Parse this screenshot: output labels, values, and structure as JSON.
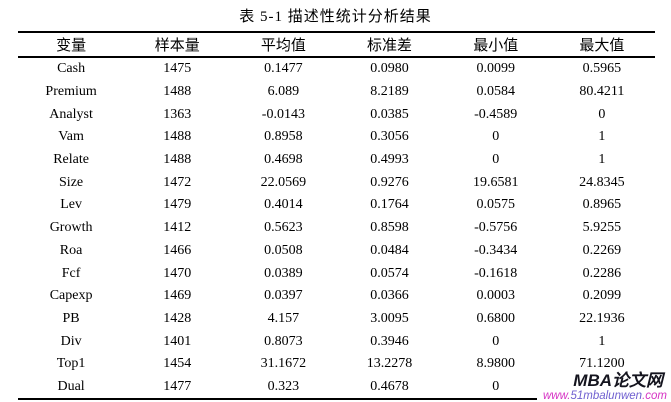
{
  "title": "表 5-1 描述性统计分析结果",
  "table": {
    "headers": [
      "变量",
      "样本量",
      "平均值",
      "标准差",
      "最小值",
      "最大值"
    ],
    "rows": [
      [
        "Cash",
        "1475",
        "0.1477",
        "0.0980",
        "0.0099",
        "0.5965"
      ],
      [
        "Premium",
        "1488",
        "6.089",
        "8.2189",
        "0.0584",
        "80.4211"
      ],
      [
        "Analyst",
        "1363",
        "-0.0143",
        "0.0385",
        "-0.4589",
        "0"
      ],
      [
        "Vam",
        "1488",
        "0.8958",
        "0.3056",
        "0",
        "1"
      ],
      [
        "Relate",
        "1488",
        "0.4698",
        "0.4993",
        "0",
        "1"
      ],
      [
        "Size",
        "1472",
        "22.0569",
        "0.9276",
        "19.6581",
        "24.8345"
      ],
      [
        "Lev",
        "1479",
        "0.4014",
        "0.1764",
        "0.0575",
        "0.8965"
      ],
      [
        "Growth",
        "1412",
        "0.5623",
        "0.8598",
        "-0.5756",
        "5.9255"
      ],
      [
        "Roa",
        "1466",
        "0.0508",
        "0.0484",
        "-0.3434",
        "0.2269"
      ],
      [
        "Fcf",
        "1470",
        "0.0389",
        "0.0574",
        "-0.1618",
        "0.2286"
      ],
      [
        "Capexp",
        "1469",
        "0.0397",
        "0.0366",
        "0.0003",
        "0.2099"
      ],
      [
        "PB",
        "1428",
        "4.157",
        "3.0095",
        "0.6800",
        "22.1936"
      ],
      [
        "Div",
        "1401",
        "0.8073",
        "0.3946",
        "0",
        "1"
      ],
      [
        "Top1",
        "1454",
        "31.1672",
        "13.2278",
        "8.9800",
        "71.1200"
      ],
      [
        "Dual",
        "1477",
        "0.323",
        "0.4678",
        "0",
        ""
      ]
    ]
  },
  "watermark": {
    "brand": "MBA论文网",
    "url_parts": [
      "www.",
      "51mbalunwen",
      ".com"
    ],
    "brand_color": "#14141e",
    "url_color": "#d633c4",
    "url_mid_color": "#6f5fd0"
  }
}
